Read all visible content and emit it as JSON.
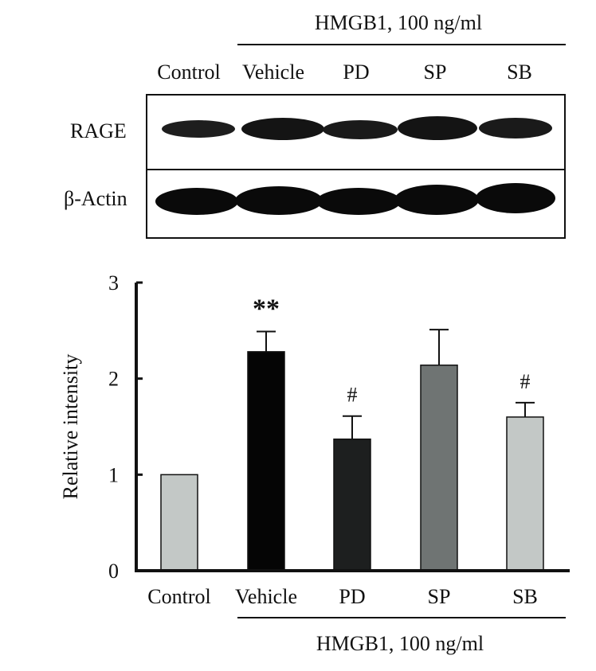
{
  "blot": {
    "treatment_label": "HMGB1, 100 ng/ml",
    "lanes": [
      "Control",
      "Vehicle",
      "PD",
      "SP",
      "SB"
    ],
    "rows": [
      "RAGE",
      "β-Actin"
    ]
  },
  "chart_data": {
    "type": "bar",
    "categories": [
      "Control",
      "Vehicle",
      "PD",
      "SP",
      "SB"
    ],
    "values": [
      1.0,
      2.28,
      1.37,
      2.14,
      1.6
    ],
    "errors": [
      0,
      0.21,
      0.24,
      0.37,
      0.15
    ],
    "annotations": [
      "",
      "**",
      "#",
      "",
      "#"
    ],
    "colors": [
      "#c3c8c6",
      "#050505",
      "#1d1f1f",
      "#6f7473",
      "#c3c8c6"
    ],
    "ylabel": "Relative intensity",
    "ylim": [
      0,
      3
    ],
    "yticks": [
      "0",
      "1",
      "2",
      "3"
    ],
    "group_label": "HMGB1, 100 ng/ml"
  }
}
